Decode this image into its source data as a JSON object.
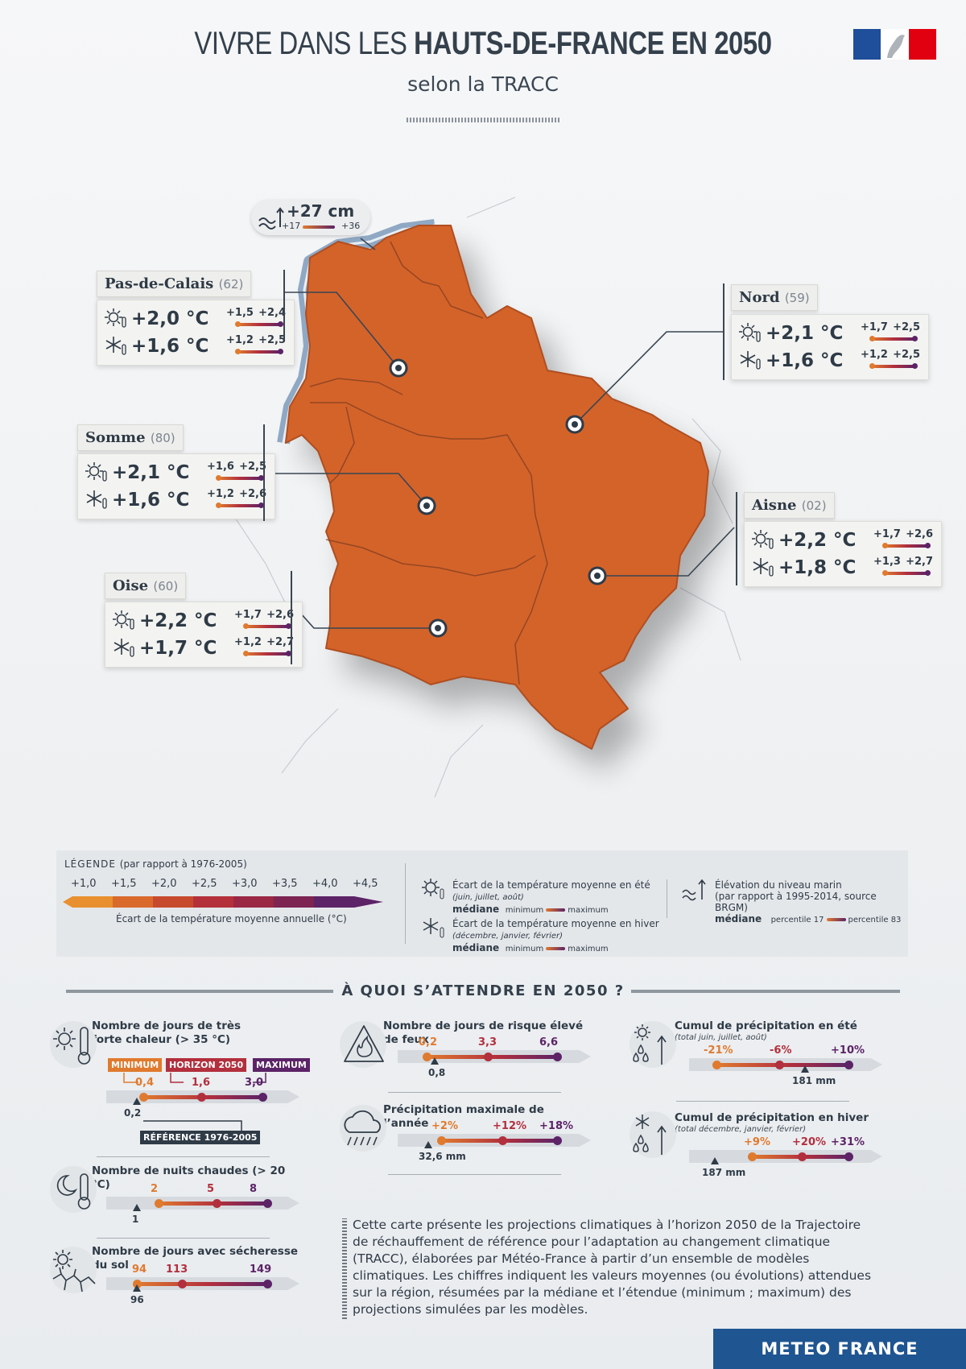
{
  "header": {
    "title_light": "VIVRE DANS LES ",
    "title_bold": "HAUTS-DE-FRANCE EN 2050",
    "subtitle": "selon la TRACC"
  },
  "colors": {
    "region_fill": "#d4632a",
    "scale": [
      "#e8902f",
      "#d96a2c",
      "#c84a2e",
      "#b4303a",
      "#9a2744",
      "#7d2452",
      "#5c2367"
    ],
    "min": "#e07a2e",
    "median": "#b22f3d",
    "max": "#5c2367",
    "brand": "#1f5591",
    "flag_blue": "#1f4e9a",
    "flag_red": "#e1000f"
  },
  "sea_level": {
    "value": "+27 cm",
    "min": "+17",
    "max": "+36",
    "icon": "sea-wave-arrow-icon"
  },
  "regions": [
    {
      "name": "Pas-de-Calais",
      "code": "(62)",
      "summer": "+2,0 °C",
      "summer_min": "+1,5",
      "summer_max": "+2,4",
      "winter": "+1,6 °C",
      "winter_min": "+1,2",
      "winter_max": "+2,5"
    },
    {
      "name": "Nord",
      "code": "(59)",
      "summer": "+2,1 °C",
      "summer_min": "+1,7",
      "summer_max": "+2,5",
      "winter": "+1,6 °C",
      "winter_min": "+1,2",
      "winter_max": "+2,5"
    },
    {
      "name": "Somme",
      "code": "(80)",
      "summer": "+2,1 °C",
      "summer_min": "+1,6",
      "summer_max": "+2,5",
      "winter": "+1,6 °C",
      "winter_min": "+1,2",
      "winter_max": "+2,6"
    },
    {
      "name": "Aisne",
      "code": "(02)",
      "summer": "+2,2 °C",
      "summer_min": "+1,7",
      "summer_max": "+2,6",
      "winter": "+1,8 °C",
      "winter_min": "+1,3",
      "winter_max": "+2,7"
    },
    {
      "name": "Oise",
      "code": "(60)",
      "summer": "+2,2 °C",
      "summer_min": "+1,7",
      "summer_max": "+2,6",
      "winter": "+1,7 °C",
      "winter_min": "+1,2",
      "winter_max": "+2,7"
    }
  ],
  "legend": {
    "title": "LÉGENDE",
    "title_note": "(par rapport à 1976-2005)",
    "ticks": [
      "+1,0",
      "+1,5",
      "+2,0",
      "+2,5",
      "+3,0",
      "+3,5",
      "+4,0",
      "+4,5"
    ],
    "scale_caption": "Écart de la température moyenne annuelle (°C)",
    "summer_title": "Écart de la température moyenne en été",
    "summer_sub": "(juin, juillet, août)",
    "winter_title": "Écart de la température moyenne en hiver",
    "winter_sub": "(décembre, janvier, février)",
    "median": "médiane",
    "minimum": "minimum",
    "maximum": "maximum",
    "sea_title": "Élévation du niveau marin",
    "sea_sub": "(par rapport à 1995-2014, source BRGM)",
    "p17": "percentile 17",
    "p83": "percentile 83"
  },
  "section_title": "À QUOI S’ATTENDRE EN 2050 ?",
  "indicators": {
    "hot_days": {
      "title1": "Nombre de jours de très",
      "title2": "forte chaleur (> 35 °C)",
      "min": "0,4",
      "median": "1,6",
      "max": "3,0",
      "ref": "0,2",
      "tag_min": "MINIMUM",
      "tag_median": "HORIZON 2050",
      "tag_max": "MAXIMUM",
      "tag_ref": "RÉFÉRENCE 1976-2005"
    },
    "hot_nights": {
      "title": "Nombre de nuits chaudes (> 20 °C)",
      "min": "2",
      "median": "5",
      "max": "8",
      "ref": "1"
    },
    "drought": {
      "title": "Nombre de jours avec sécheresse du sol",
      "min": "94",
      "median": "113",
      "max": "149",
      "ref": "96"
    },
    "fire": {
      "title": "Nombre de jours de risque élevé de feux",
      "min": "0,2",
      "median": "3,3",
      "max": "6,6",
      "ref": "0,8"
    },
    "max_precip": {
      "title": "Précipitation maximale de l’année",
      "min": "+2%",
      "median": "+12%",
      "max": "+18%",
      "ref": "32,6 mm"
    },
    "summer_precip": {
      "title": "Cumul de précipitation en été",
      "sub": "(total juin, juillet, août)",
      "min": "-21%",
      "median": "-6%",
      "max": "+10%",
      "ref": "181 mm"
    },
    "winter_precip": {
      "title": "Cumul de précipitation en hiver",
      "sub": "(total décembre, janvier, février)",
      "min": "+9%",
      "median": "+20%",
      "max": "+31%",
      "ref": "187 mm"
    }
  },
  "note": "Cette carte présente les projections climatiques à l’horizon 2050 de la Trajectoire de réchauffement de référence pour l’adaptation au changement climatique (TRACC), élaborées par Météo-France à partir d’un ensemble de modèles climatiques. Les chiffres indiquent les valeurs moyennes (ou évolutions) attendues sur la région, résumées par la médiane et l’étendue (minimum ; maximum) des projections simulées par les modèles.",
  "brand": "METEO FRANCE"
}
